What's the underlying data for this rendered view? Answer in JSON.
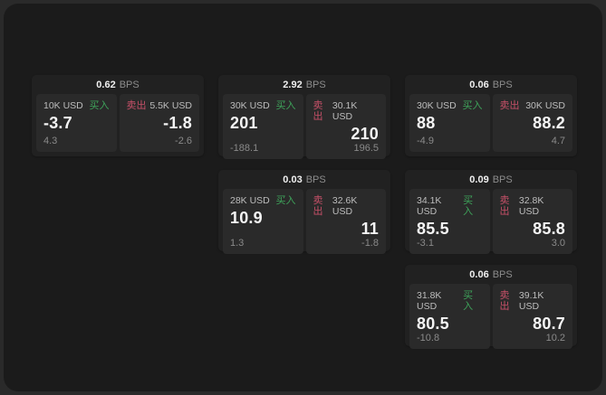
{
  "labels": {
    "bps_unit": "BPS",
    "buy": "买入",
    "sell": "卖出"
  },
  "colors": {
    "buy_accent": "#3ea35a",
    "sell_accent": "#c65068",
    "window_bg": "#1b1b1b",
    "card_bg": "#212121",
    "panel_bg": "#2a2a2a",
    "price_text": "#f5f5f5",
    "muted_text": "#8a8a8a"
  },
  "cards": [
    {
      "bps": "0.62",
      "buy": {
        "amount": "10K USD",
        "price": "-3.7",
        "delta": "4.3"
      },
      "sell": {
        "amount": "5.5K USD",
        "price": "-1.8",
        "delta": "-2.6"
      }
    },
    {
      "bps": "2.92",
      "buy": {
        "amount": "30K USD",
        "price": "201",
        "delta": "-188.1"
      },
      "sell": {
        "amount": "30.1K USD",
        "price": "210",
        "delta": "196.5"
      }
    },
    {
      "bps": "0.06",
      "buy": {
        "amount": "30K USD",
        "price": "88",
        "delta": "-4.9"
      },
      "sell": {
        "amount": "30K USD",
        "price": "88.2",
        "delta": "4.7"
      }
    },
    {
      "bps": "0.03",
      "buy": {
        "amount": "28K USD",
        "price": "10.9",
        "delta": "1.3"
      },
      "sell": {
        "amount": "32.6K USD",
        "price": "11",
        "delta": "-1.8"
      }
    },
    {
      "bps": "0.09",
      "buy": {
        "amount": "34.1K USD",
        "price": "85.5",
        "delta": "-3.1"
      },
      "sell": {
        "amount": "32.8K USD",
        "price": "85.8",
        "delta": "3.0"
      }
    },
    {
      "bps": "0.06",
      "buy": {
        "amount": "31.8K USD",
        "price": "80.5",
        "delta": "-10.8"
      },
      "sell": {
        "amount": "39.1K USD",
        "price": "80.7",
        "delta": "10.2"
      }
    }
  ]
}
